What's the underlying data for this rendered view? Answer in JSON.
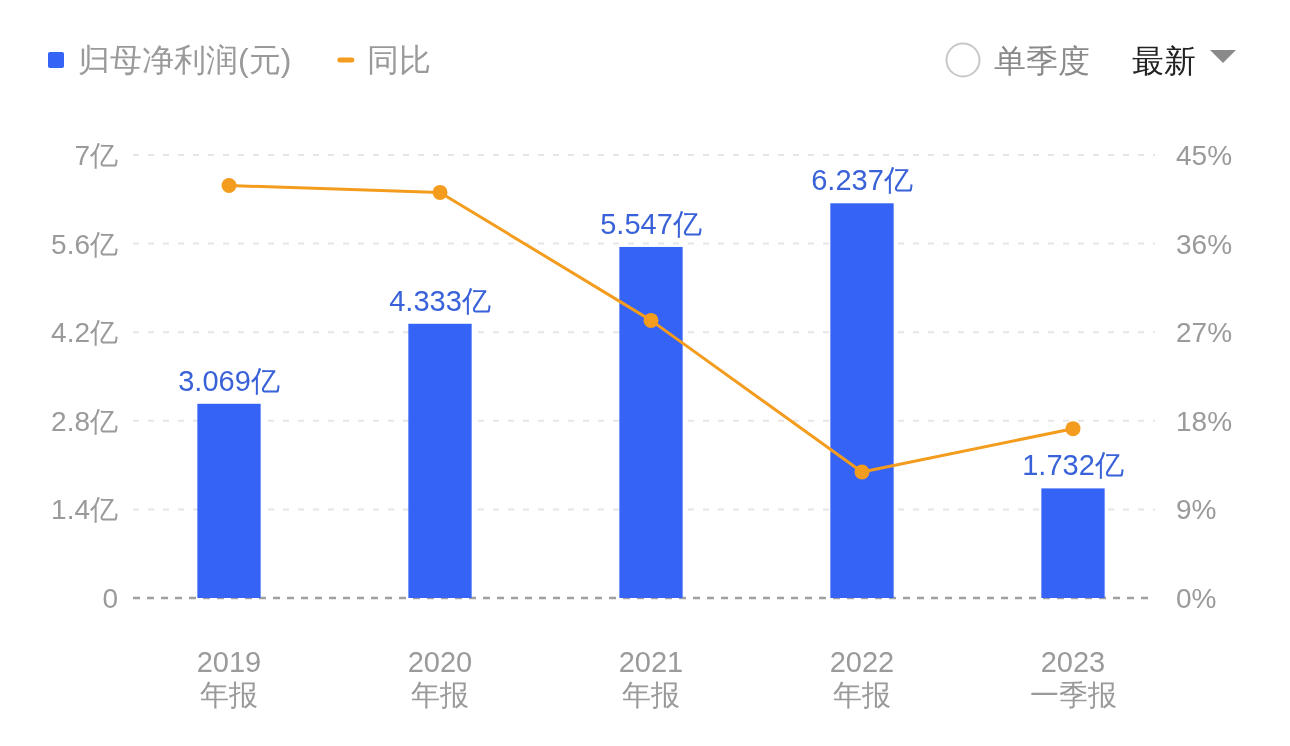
{
  "chart_data": {
    "type": "bar",
    "categories": [
      "2019\n年报",
      "2020\n年报",
      "2021\n年报",
      "2022\n年报",
      "2023\n一季报"
    ],
    "series": [
      {
        "name": "归母净利润(元)",
        "color": "#3563f6",
        "values": [
          3.069,
          4.333,
          5.547,
          6.237,
          1.732
        ],
        "value_labels": [
          "3.069亿",
          "4.333亿",
          "5.547亿",
          "6.237亿",
          "1.732亿"
        ]
      },
      {
        "name": "同比",
        "type": "line",
        "axis": "y2",
        "color": "#f39c1e",
        "marker": "circle",
        "line_style": "solid",
        "values": [
          41.9,
          41.2,
          28.2,
          12.8,
          17.2
        ]
      }
    ],
    "ylim": [
      0,
      7
    ],
    "yticks": [
      0,
      {
        "value": 1.4,
        "label": "1.4亿"
      },
      {
        "value": 2.8,
        "label": "2.8亿"
      },
      {
        "value": 4.2,
        "label": "4.2亿"
      },
      {
        "value": 5.6,
        "label": "5.6亿"
      },
      {
        "value": 7,
        "label": "7亿"
      }
    ],
    "y2lim": [
      0,
      45
    ],
    "y2ticks": [
      {
        "value": 0,
        "label": "0%"
      },
      {
        "value": 9,
        "label": "9%"
      },
      {
        "value": 18,
        "label": "18%"
      },
      {
        "value": 27,
        "label": "27%"
      },
      {
        "value": 36,
        "label": "36%"
      },
      {
        "value": 45,
        "label": "45%"
      }
    ],
    "grid": "y",
    "legend": "top left",
    "annotations": [
      "单季度",
      "最新"
    ]
  }
}
